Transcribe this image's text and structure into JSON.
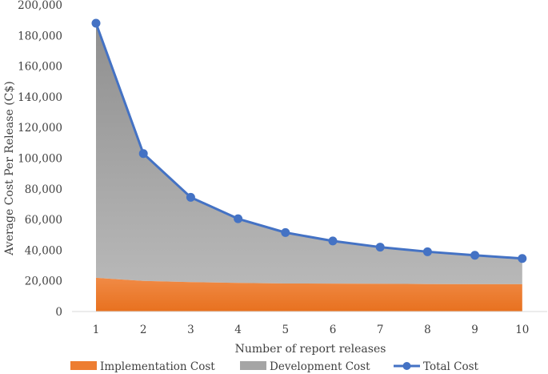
{
  "chart_data": {
    "type": "area",
    "title": "",
    "xlabel": "Number of report releases",
    "ylabel": "Average Cost Per Release (C$)",
    "categories": [
      "1",
      "2",
      "3",
      "4",
      "5",
      "6",
      "7",
      "8",
      "9",
      "10"
    ],
    "ylim": [
      0,
      200000
    ],
    "yticks": [
      "0",
      "20,000",
      "40,000",
      "60,000",
      "80,000",
      "100,000",
      "120,000",
      "140,000",
      "160,000",
      "180,000",
      "200,000"
    ],
    "ytick_values": [
      0,
      20000,
      40000,
      60000,
      80000,
      100000,
      120000,
      140000,
      160000,
      180000,
      200000
    ],
    "grid": false,
    "legend_position": "bottom",
    "series": [
      {
        "name": "Implementation Cost",
        "kind": "area",
        "color": "#ED7D31",
        "values": [
          22000,
          20000,
          19200,
          18700,
          18300,
          18200,
          18100,
          17900,
          17800,
          17800
        ]
      },
      {
        "name": "Development Cost",
        "kind": "area",
        "color": "#A5A5A5",
        "values": [
          166000,
          83000,
          55300,
          41800,
          33200,
          27800,
          23900,
          21100,
          18900,
          16800
        ]
      },
      {
        "name": "Total Cost",
        "kind": "line",
        "color": "#4472C4",
        "values": [
          188000,
          103000,
          74500,
          60500,
          51500,
          46000,
          42000,
          39000,
          36700,
          34600
        ]
      }
    ]
  }
}
